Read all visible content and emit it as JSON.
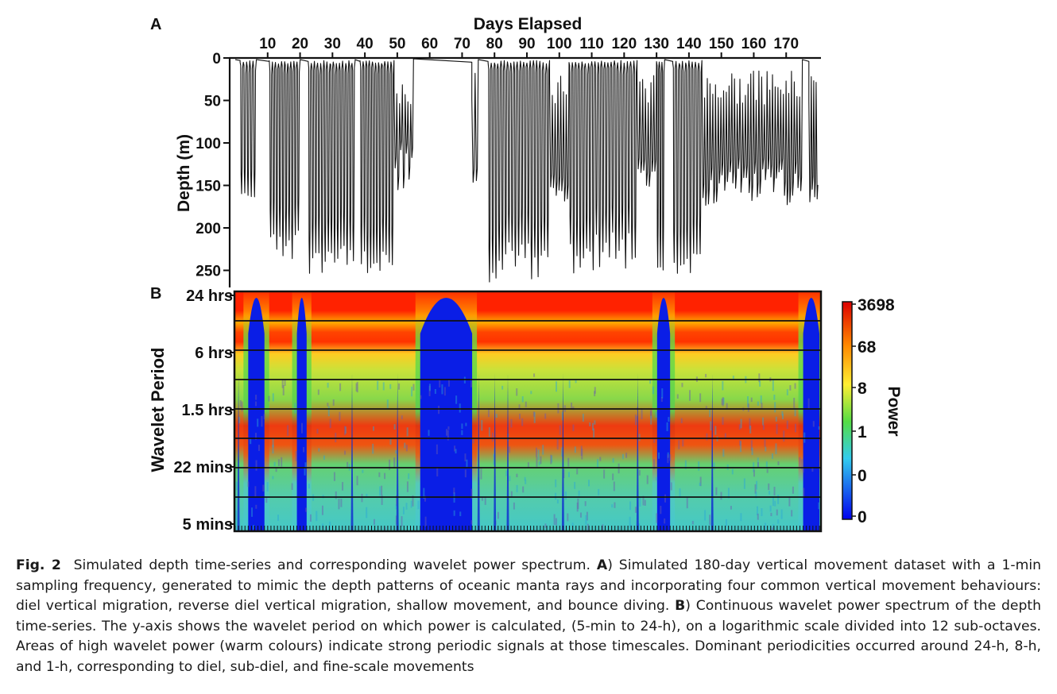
{
  "panels": {
    "a_letter": "A",
    "b_letter": "B"
  },
  "depth_plot": {
    "title": "Days Elapsed",
    "ylabel": "Depth (m)",
    "x_ticks": [
      "10",
      "20",
      "30",
      "40",
      "50",
      "60",
      "70",
      "80",
      "90",
      "100",
      "110",
      "120",
      "130",
      "140",
      "150",
      "160",
      "170"
    ],
    "y_ticks": [
      "0",
      "50",
      "100",
      "150",
      "200",
      "250"
    ]
  },
  "wavelet_plot": {
    "ylabel": "Wavelet Period",
    "y_ticks": [
      "24 hrs",
      "6 hrs",
      "1.5 hrs",
      "22 mins",
      "5 mins"
    ],
    "colorbar_label": "Power",
    "colorbar_ticks": [
      "3698",
      "68",
      "8",
      "1",
      "0",
      "0"
    ]
  },
  "chart_data": [
    {
      "type": "line",
      "title": "Days Elapsed",
      "xlabel": "Days Elapsed",
      "ylabel": "Depth (m)",
      "xlim": [
        0,
        180
      ],
      "ylim": [
        265,
        0
      ],
      "x_ticks": [
        10,
        20,
        30,
        40,
        50,
        60,
        70,
        80,
        90,
        100,
        110,
        120,
        130,
        140,
        150,
        160,
        170
      ],
      "y_ticks": [
        0,
        50,
        100,
        150,
        200,
        250
      ],
      "segments": [
        {
          "start": 0,
          "end": 1.5,
          "shape": "surface",
          "low": 2,
          "high": 3
        },
        {
          "start": 1.5,
          "end": 6.5,
          "shape": "dive",
          "low": 150,
          "high": 170
        },
        {
          "start": 6.5,
          "end": 10.5,
          "shape": "surface",
          "low": 2,
          "high": 4
        },
        {
          "start": 10.5,
          "end": 20,
          "shape": "dive",
          "low": 200,
          "high": 260
        },
        {
          "start": 20,
          "end": 22.5,
          "shape": "surface",
          "low": 2,
          "high": 4
        },
        {
          "start": 22.5,
          "end": 37,
          "shape": "dive",
          "low": 220,
          "high": 255
        },
        {
          "start": 37,
          "end": 38.5,
          "shape": "surface",
          "low": 2,
          "high": 4
        },
        {
          "start": 38.5,
          "end": 49,
          "shape": "dive",
          "low": 225,
          "high": 260
        },
        {
          "start": 49,
          "end": 55,
          "shape": "bounce",
          "low": 60,
          "high": 165
        },
        {
          "start": 55,
          "end": 73,
          "shape": "surface",
          "low": 1,
          "high": 5
        },
        {
          "start": 73,
          "end": 75,
          "shape": "bounce",
          "low": 140,
          "high": 150
        },
        {
          "start": 75,
          "end": 78,
          "shape": "surface",
          "low": 2,
          "high": 4
        },
        {
          "start": 78,
          "end": 97,
          "shape": "dive",
          "low": 215,
          "high": 265
        },
        {
          "start": 97,
          "end": 103,
          "shape": "bounce",
          "low": 150,
          "high": 170
        },
        {
          "start": 103,
          "end": 124,
          "shape": "dive",
          "low": 205,
          "high": 255
        },
        {
          "start": 124,
          "end": 130,
          "shape": "bounce",
          "low": 130,
          "high": 170
        },
        {
          "start": 130,
          "end": 132.5,
          "shape": "dive",
          "low": 245,
          "high": 255
        },
        {
          "start": 132.5,
          "end": 135,
          "shape": "surface",
          "low": 2,
          "high": 4
        },
        {
          "start": 135,
          "end": 144,
          "shape": "dive",
          "low": 230,
          "high": 260
        },
        {
          "start": 144,
          "end": 175,
          "shape": "bounce",
          "low": 130,
          "high": 175
        },
        {
          "start": 175,
          "end": 177,
          "shape": "surface",
          "low": 2,
          "high": 4
        },
        {
          "start": 177,
          "end": 180,
          "shape": "bounce",
          "low": 150,
          "high": 170
        }
      ]
    },
    {
      "type": "heatmap",
      "ylabel": "Wavelet Period",
      "xlim": [
        0,
        180
      ],
      "y_ticks": [
        "24 hrs",
        "6 hrs",
        "1.5 hrs",
        "22 mins",
        "5 mins"
      ],
      "colorbar": {
        "label": "Power",
        "ticks": [
          "3698",
          "68",
          "8",
          "1",
          "0",
          "0"
        ],
        "colors": [
          "#ff0000",
          "#ff8800",
          "#ffee00",
          "#55dd44",
          "#33ccee",
          "#0000ee"
        ]
      },
      "features": [
        {
          "kind": "low_power_band",
          "x_start": 4,
          "x_end": 9
        },
        {
          "kind": "low_power_band",
          "x_start": 19,
          "x_end": 22
        },
        {
          "kind": "low_power_band",
          "x_start": 57,
          "x_end": 73
        },
        {
          "kind": "low_power_band",
          "x_start": 130,
          "x_end": 134
        },
        {
          "kind": "low_power_band",
          "x_start": 175,
          "x_end": 180
        },
        {
          "kind": "high_power_period",
          "period": "24 hrs"
        },
        {
          "kind": "high_power_period",
          "period": "8 hrs"
        },
        {
          "kind": "high_power_period",
          "period": "1 hr"
        }
      ]
    }
  ],
  "caption": {
    "fig_label": "Fig. 2",
    "text_1": "Simulated depth time-series and corresponding wavelet power spectrum. ",
    "label_a": "A",
    "text_2": ") Simulated 180-day vertical movement dataset with a 1-min sampling frequency, generated to mimic the depth patterns of oceanic manta rays and incorporating four common vertical movement behaviours: diel vertical migration, reverse diel vertical migration, shallow movement, and bounce diving. ",
    "label_b": "B",
    "text_3": ") Continuous wavelet power spectrum of the depth time-series. The y-axis shows the wavelet period on which power is calculated, (5-min to 24-h), on a logarithmic scale divided into 12 sub-octaves. Areas of high wavelet power (warm colours) indicate strong periodic signals at those timescales. Dominant periodicities occurred around 24-h, 8-h, and 1-h, corresponding to diel, sub-diel, and fine-scale movements"
  }
}
